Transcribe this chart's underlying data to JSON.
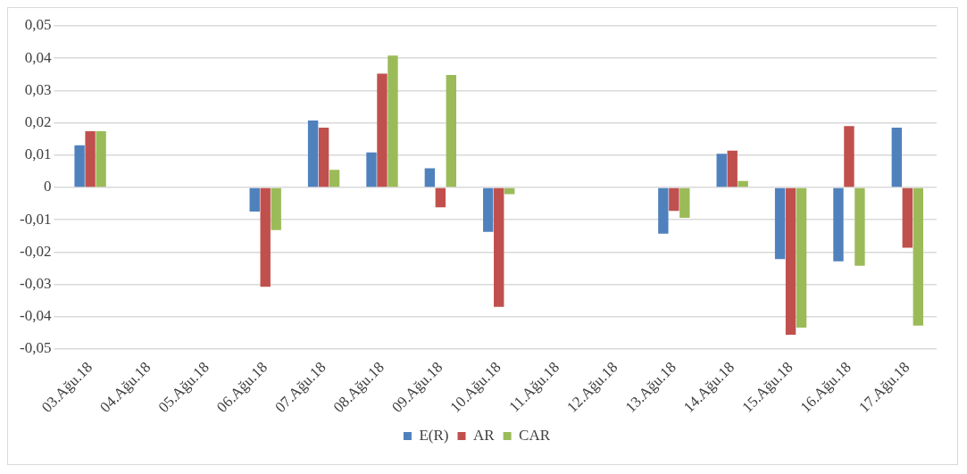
{
  "chart_data": {
    "type": "bar",
    "categories": [
      "03.Ağu.18",
      "04.Ağu.18",
      "05.Ağu.18",
      "06.Ağu.18",
      "07.Ağu.18",
      "08.Ağu.18",
      "09.Ağu.18",
      "10.Ağu.18",
      "11.Ağu.18",
      "12.Ağu.18",
      "13.Ağu.18",
      "14.Ağu.18",
      "15.Ağu.18",
      "16.Ağu.18",
      "17.Ağu.18"
    ],
    "series": [
      {
        "name": "E(R)",
        "color": "#4f81bd",
        "values": [
          0.013,
          null,
          null,
          -0.0075,
          0.0207,
          0.0108,
          0.0059,
          -0.0138,
          null,
          null,
          -0.0143,
          0.0104,
          -0.0222,
          -0.0229,
          0.0185
        ]
      },
      {
        "name": "AR",
        "color": "#c0504d",
        "values": [
          0.0174,
          null,
          null,
          -0.0308,
          0.0185,
          0.0352,
          -0.0062,
          -0.037,
          null,
          null,
          -0.0073,
          0.0114,
          -0.0456,
          0.019,
          -0.0187
        ]
      },
      {
        "name": "CAR",
        "color": "#9bbb59",
        "values": [
          0.0174,
          null,
          null,
          -0.0132,
          0.0054,
          0.0408,
          0.0348,
          -0.0021,
          null,
          null,
          -0.0094,
          0.002,
          -0.0434,
          -0.0243,
          -0.0428
        ]
      }
    ],
    "ylim": [
      -0.05,
      0.05
    ],
    "yticks": [
      {
        "value": -0.05,
        "label": "-0,05"
      },
      {
        "value": -0.04,
        "label": "-0,04"
      },
      {
        "value": -0.03,
        "label": "-0,03"
      },
      {
        "value": -0.02,
        "label": "-0,02"
      },
      {
        "value": -0.01,
        "label": "-0,01"
      },
      0,
      {
        "value": 0.01,
        "label": "0,01"
      },
      {
        "value": 0.02,
        "label": "0,02"
      },
      {
        "value": 0.03,
        "label": "0,03"
      },
      {
        "value": 0.04,
        "label": "0,04"
      },
      {
        "value": 0.05,
        "label": "0,05"
      }
    ],
    "grid": "y",
    "legend": "bottom"
  }
}
